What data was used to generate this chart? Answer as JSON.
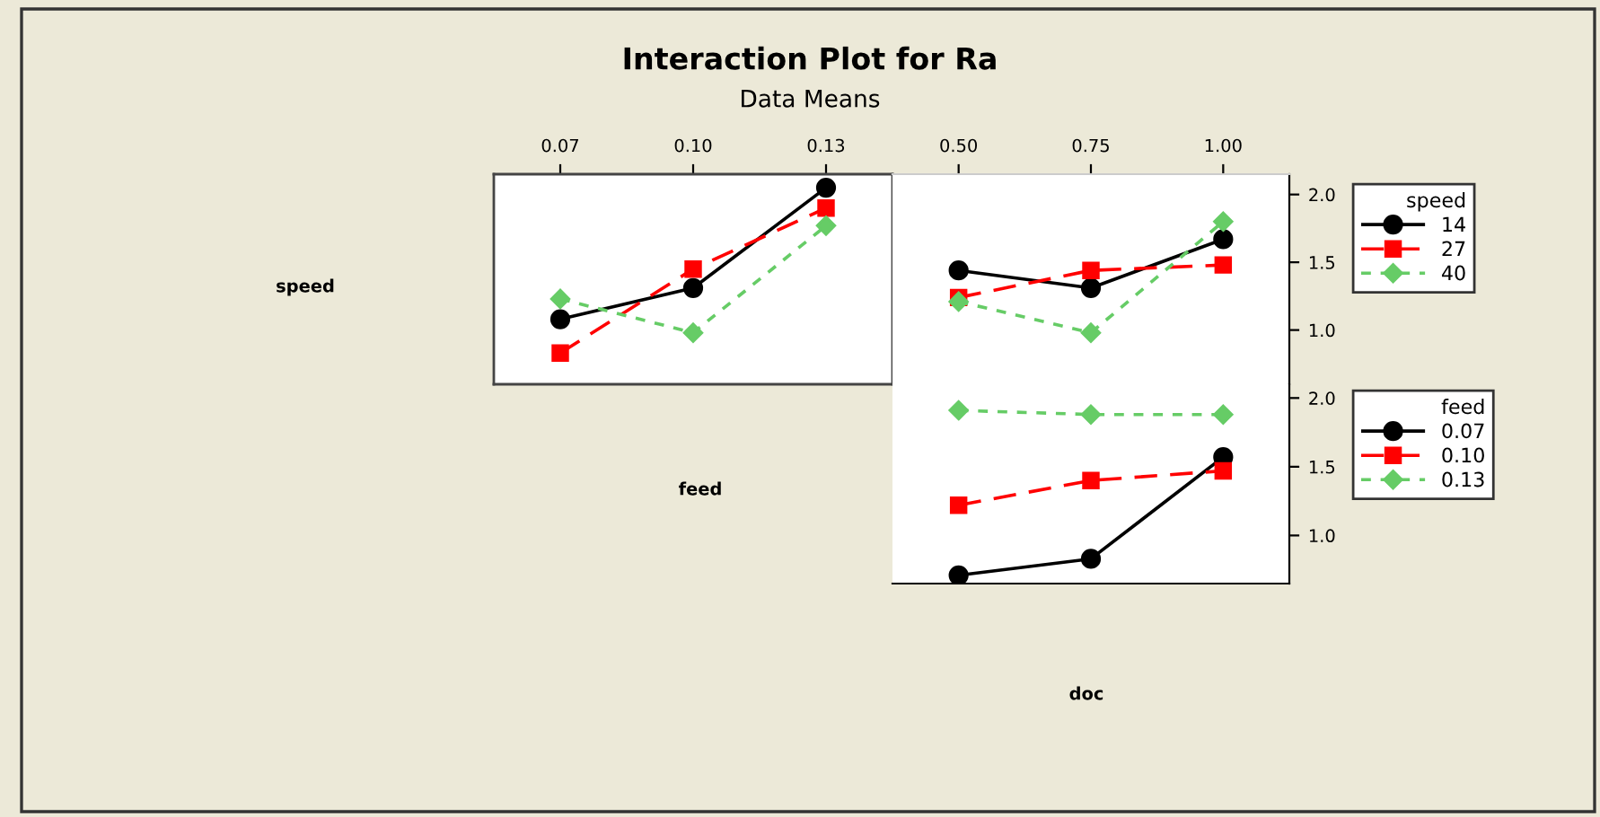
{
  "chart_data": [
    {
      "type": "line",
      "title": "Interaction Plot for Ra",
      "subtitle": "Data Means",
      "annotations": [
        "speed",
        "feed",
        "doc"
      ],
      "categories": [
        "0.07",
        "0.10",
        "0.13"
      ],
      "ylim": [
        0.6,
        2.15
      ],
      "tick_labels": "x",
      "grid": false,
      "legend": false,
      "series": [
        {
          "color": "#000000",
          "marker": "circle",
          "line_style": "solid",
          "values": [
            1.08,
            1.31,
            2.05
          ]
        },
        {
          "color": "#ff0000",
          "marker": "square",
          "line_style": "dashed",
          "values": [
            0.83,
            1.45,
            1.9
          ]
        },
        {
          "color": "#66cc66",
          "marker": "diamond",
          "line_style": "dotted",
          "values": [
            1.23,
            0.98,
            1.77
          ]
        }
      ]
    },
    {
      "type": "line",
      "categories": [
        "0.50",
        "0.75",
        "1.00"
      ],
      "ylim": [
        0.6,
        2.15
      ],
      "yticks": [
        {
          "value": 1.0,
          "label": "1.0"
        },
        {
          "value": 1.5,
          "label": "1.5"
        },
        {
          "value": 2.0,
          "label": "2.0"
        }
      ],
      "grid": false,
      "legend": "right",
      "legend_title": "speed",
      "series": [
        {
          "name": "14",
          "color": "#000000",
          "marker": "circle",
          "line_style": "solid",
          "values": [
            1.44,
            1.31,
            1.67
          ]
        },
        {
          "name": "27",
          "color": "#ff0000",
          "marker": "square",
          "line_style": "dashed",
          "values": [
            1.24,
            1.44,
            1.48
          ]
        },
        {
          "name": "40",
          "color": "#66cc66",
          "marker": "diamond",
          "line_style": "dotted",
          "values": [
            1.21,
            0.98,
            1.8
          ]
        }
      ]
    },
    {
      "type": "line",
      "categories": [
        "0.50",
        "0.75",
        "1.00"
      ],
      "ylim": [
        0.65,
        2.1
      ],
      "yticks": [
        {
          "value": 1.0,
          "label": "1.0"
        },
        {
          "value": 1.5,
          "label": "1.5"
        },
        {
          "value": 2.0,
          "label": "2.0"
        }
      ],
      "tick_labels": "y",
      "grid": false,
      "legend": "right",
      "legend_title": "feed",
      "series": [
        {
          "name": "0.07",
          "color": "#000000",
          "marker": "circle",
          "line_style": "solid",
          "values": [
            0.71,
            0.83,
            1.57
          ]
        },
        {
          "name": "0.10",
          "color": "#ff0000",
          "marker": "square",
          "line_style": "dashed",
          "values": [
            1.22,
            1.4,
            1.47
          ]
        },
        {
          "name": "0.13",
          "color": "#66cc66",
          "marker": "diamond",
          "line_style": "dotted",
          "values": [
            1.91,
            1.88,
            1.88
          ]
        }
      ]
    }
  ]
}
